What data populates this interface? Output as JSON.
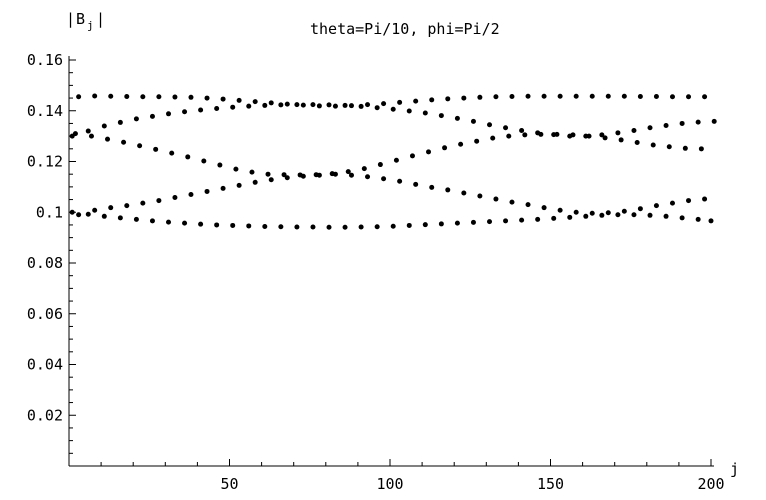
{
  "chart_data": {
    "type": "scatter",
    "title": "theta=Pi/10, phi=Pi/2",
    "xlabel": "j",
    "ylabel": "|B_j|",
    "ylabel_main": "B",
    "ylabel_sub": "j",
    "ylabel_bar": "|",
    "xlim": [
      0,
      200
    ],
    "ylim": [
      0,
      0.16
    ],
    "x_ticks": [
      50,
      100,
      150,
      200
    ],
    "x_tick_labels": [
      "50",
      "100",
      "150",
      "200"
    ],
    "y_ticks": [
      0.02,
      0.04,
      0.06,
      0.08,
      0.1,
      0.12,
      0.14,
      0.16
    ],
    "y_tick_labels": [
      "0.02",
      "0.04",
      "0.06",
      "0.08",
      "0.1",
      "0.12",
      "0.14",
      "0.16"
    ],
    "grid": false,
    "point_color": "#000000",
    "series": [
      {
        "x": [
          3,
          8,
          13,
          18,
          23,
          28,
          33,
          38,
          43,
          48,
          53,
          58,
          63,
          68,
          73,
          78,
          83,
          88,
          93,
          98,
          103,
          108,
          113,
          118,
          123,
          128,
          133,
          138,
          143,
          148,
          153,
          158,
          163,
          168,
          173,
          178,
          183,
          188,
          193,
          198
        ],
        "y": [
          0.1455,
          0.1458,
          0.1457,
          0.1456,
          0.1455,
          0.1455,
          0.1454,
          0.1453,
          0.145,
          0.1446,
          0.1441,
          0.1436,
          0.1431,
          0.1426,
          0.1422,
          0.1419,
          0.1418,
          0.142,
          0.1424,
          0.1428,
          0.1433,
          0.1438,
          0.1443,
          0.1447,
          0.145,
          0.1453,
          0.1455,
          0.1456,
          0.1457,
          0.1457,
          0.1457,
          0.1457,
          0.1457,
          0.1457,
          0.1457,
          0.1456,
          0.1456,
          0.1455,
          0.1455,
          0.1455
        ]
      },
      {
        "x": [
          1,
          6,
          11,
          16,
          21,
          26,
          31,
          36,
          41,
          46,
          51,
          56,
          61,
          66,
          71,
          76,
          81,
          86,
          91,
          96,
          101,
          106,
          111,
          116,
          121,
          126,
          131,
          136,
          141,
          146,
          151,
          156,
          161,
          166,
          171,
          176,
          181,
          186,
          191,
          196,
          201
        ],
        "y": [
          0.13,
          0.132,
          0.134,
          0.1354,
          0.1368,
          0.1378,
          0.1388,
          0.1396,
          0.1403,
          0.1409,
          0.1414,
          0.1418,
          0.1421,
          0.1423,
          0.1424,
          0.1424,
          0.1423,
          0.1421,
          0.1417,
          0.1412,
          0.1406,
          0.1399,
          0.1391,
          0.1381,
          0.137,
          0.1358,
          0.1345,
          0.1333,
          0.1322,
          0.1313,
          0.1306,
          0.13,
          0.13,
          0.1305,
          0.1313,
          0.1322,
          0.1333,
          0.1342,
          0.135,
          0.1355,
          0.1358
        ]
      },
      {
        "x": [
          2,
          7,
          12,
          17,
          22,
          27,
          32,
          37,
          42,
          47,
          52,
          57,
          62,
          67,
          72,
          77,
          82,
          87,
          92,
          97,
          102,
          107,
          112,
          117,
          122,
          127,
          132,
          137,
          142,
          147,
          152,
          157,
          162,
          167,
          172,
          177,
          182,
          187,
          192,
          197
        ],
        "y": [
          0.131,
          0.13,
          0.1288,
          0.1276,
          0.1262,
          0.1248,
          0.1233,
          0.1218,
          0.1202,
          0.1186,
          0.117,
          0.1158,
          0.115,
          0.1148,
          0.1147,
          0.1148,
          0.1152,
          0.116,
          0.1172,
          0.1188,
          0.1205,
          0.1222,
          0.1238,
          0.1254,
          0.1268,
          0.128,
          0.1292,
          0.13,
          0.1305,
          0.1307,
          0.1307,
          0.1305,
          0.13,
          0.1293,
          0.1285,
          0.1275,
          0.1265,
          0.1258,
          0.1252,
          0.125
        ]
      },
      {
        "x": [
          3,
          8,
          13,
          18,
          23,
          28,
          33,
          38,
          43,
          48,
          53,
          58,
          63,
          68,
          73,
          78,
          83,
          88,
          93,
          98,
          103,
          108,
          113,
          118,
          123,
          128,
          133,
          138,
          143,
          148,
          153,
          158,
          163,
          168,
          173,
          178,
          183,
          188,
          193,
          198
        ],
        "y": [
          0.099,
          0.1008,
          0.1018,
          0.1026,
          0.1036,
          0.1046,
          0.1058,
          0.107,
          0.1082,
          0.1094,
          0.1106,
          0.1118,
          0.1128,
          0.1136,
          0.1142,
          0.1146,
          0.115,
          0.1146,
          0.114,
          0.1132,
          0.1122,
          0.111,
          0.1098,
          0.1088,
          0.1076,
          0.1064,
          0.1052,
          0.104,
          0.103,
          0.1018,
          0.1008,
          0.1,
          0.0996,
          0.0998,
          0.1004,
          0.1014,
          0.1026,
          0.1036,
          0.1046,
          0.1052
        ]
      },
      {
        "x": [
          1,
          6,
          11,
          16,
          21,
          26,
          31,
          36,
          41,
          46,
          51,
          56,
          61,
          66,
          71,
          76,
          81,
          86,
          91,
          96,
          101,
          106,
          111,
          116,
          121,
          126,
          131,
          136,
          141,
          146,
          151,
          156,
          161,
          166,
          171,
          176,
          181,
          186,
          191,
          196,
          200
        ],
        "y": [
          0.1,
          0.0992,
          0.0984,
          0.0978,
          0.0972,
          0.0966,
          0.0961,
          0.0957,
          0.0953,
          0.095,
          0.0948,
          0.0946,
          0.0944,
          0.0943,
          0.0942,
          0.0942,
          0.0941,
          0.0941,
          0.0942,
          0.0943,
          0.0945,
          0.0948,
          0.0951,
          0.0954,
          0.0957,
          0.096,
          0.0963,
          0.0966,
          0.0969,
          0.0972,
          0.0976,
          0.098,
          0.0984,
          0.0988,
          0.099,
          0.099,
          0.0988,
          0.0984,
          0.0978,
          0.0972,
          0.0966
        ]
      }
    ]
  }
}
